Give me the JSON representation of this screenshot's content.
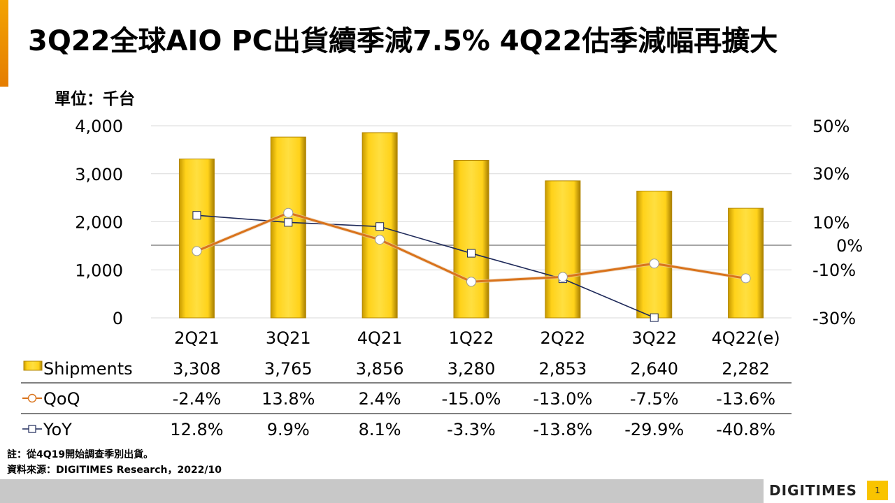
{
  "page": {
    "title": "3Q22全球AIO PC出貨續季減7.5%  4Q22估季減幅再擴大",
    "unit_label": "單位：千台",
    "note": "註：從4Q19開始調查季別出貨。",
    "source": "資料來源：DIGITIMES Research，2022/10",
    "logo": "DIGITIMES",
    "page_number": "1",
    "colors": {
      "bar": "#ffc000",
      "qoq": "#d9731c",
      "yoy": "#1f2a5a",
      "accent": "#f39c12"
    }
  },
  "chart_data": {
    "type": "bar",
    "categories": [
      "2Q21",
      "3Q21",
      "4Q21",
      "1Q22",
      "2Q22",
      "3Q22",
      "4Q22(e)"
    ],
    "series": [
      {
        "name": "Shipments",
        "type": "bar",
        "axis": "left",
        "values": [
          3308,
          3765,
          3856,
          3280,
          2853,
          2640,
          2282
        ],
        "labels": [
          "3,308",
          "3,765",
          "3,856",
          "3,280",
          "2,853",
          "2,640",
          "2,282"
        ]
      },
      {
        "name": "QoQ",
        "type": "line",
        "axis": "right",
        "values": [
          -2.4,
          13.8,
          2.4,
          -15.0,
          -13.0,
          -7.5,
          -13.6
        ],
        "labels": [
          "-2.4%",
          "13.8%",
          "2.4%",
          "-15.0%",
          "-13.0%",
          "-7.5%",
          "-13.6%"
        ]
      },
      {
        "name": "YoY",
        "type": "line",
        "axis": "right",
        "values": [
          12.8,
          9.9,
          8.1,
          -3.3,
          -13.8,
          -29.9,
          -40.8
        ],
        "labels": [
          "12.8%",
          "9.9%",
          "8.1%",
          "-3.3%",
          "-13.8%",
          "-29.9%",
          "-40.8%"
        ]
      }
    ],
    "y_left": {
      "ticks": [
        0,
        1000,
        2000,
        3000,
        4000
      ],
      "tick_labels": [
        "0",
        "1,000",
        "2,000",
        "3,000",
        "4,000"
      ],
      "ylim": [
        0,
        4000
      ]
    },
    "y_right": {
      "ticks": [
        -30,
        -10,
        0,
        10,
        30,
        50
      ],
      "tick_labels": [
        "-30%",
        "-10%",
        "0%",
        "10%",
        "30%",
        "50%"
      ],
      "ylim": [
        -30,
        50
      ]
    },
    "grid": true,
    "legend": "table-below"
  }
}
